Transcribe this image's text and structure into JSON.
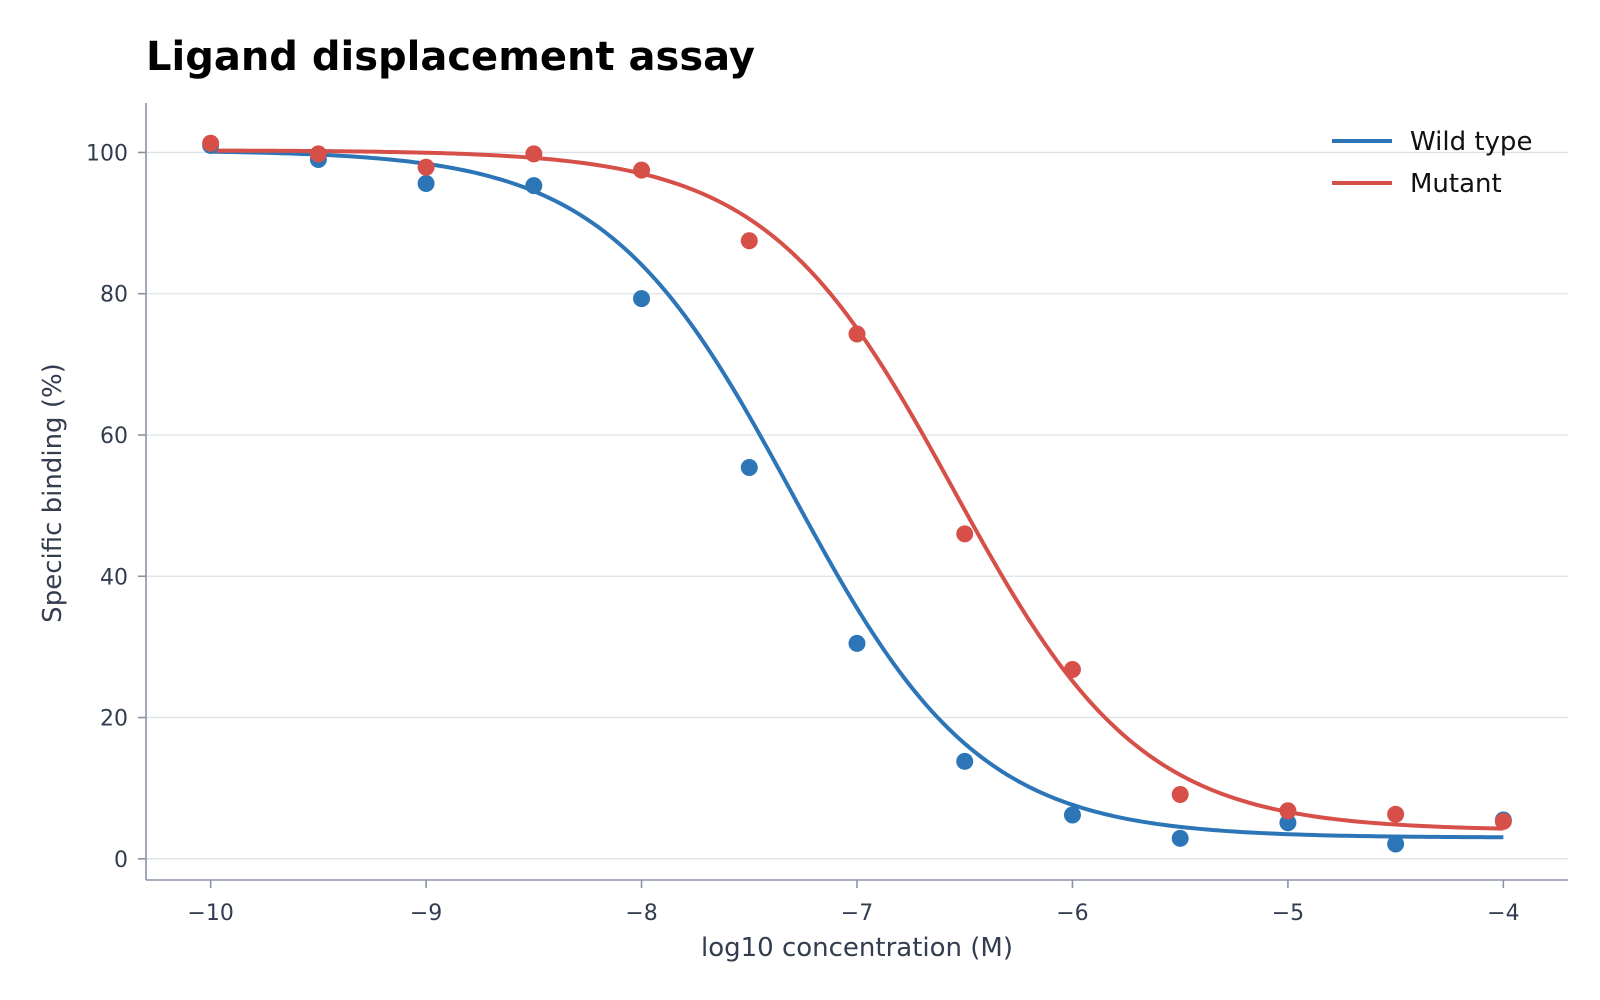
{
  "chart_data": {
    "type": "scatter",
    "title": "Ligand displacement assay",
    "xlabel": "log10 concentration (M)",
    "ylabel": "Specific binding (%)",
    "xlim": [
      -10.3,
      -3.7
    ],
    "ylim": [
      -3,
      107
    ],
    "xticks": [
      -10,
      -9,
      -8,
      -7,
      -6,
      -5,
      -4
    ],
    "xtick_labels": [
      "−10",
      "−9",
      "−8",
      "−7",
      "−6",
      "−5",
      "−4"
    ],
    "yticks": [
      0,
      20,
      40,
      60,
      80,
      100
    ],
    "ytick_labels": [
      "0",
      "20",
      "40",
      "60",
      "80",
      "100"
    ],
    "grid": "horizontal",
    "legend_position": "top-right",
    "x": [
      -10,
      -9.5,
      -9,
      -8.5,
      -8,
      -7.5,
      -7,
      -6.5,
      -6,
      -5.5,
      -5,
      -4.5,
      -4
    ],
    "series": [
      {
        "name": "Wild type",
        "color": "#2c76b8",
        "points": [
          101.0,
          99.0,
          95.6,
          95.3,
          79.3,
          55.4,
          30.5,
          13.8,
          6.2,
          2.9,
          5.1,
          2.1,
          5.5
        ],
        "fit": {
          "model": "sigmoidal dose-response",
          "top": 100.3,
          "bottom": 3.0,
          "log_ic50": -7.3,
          "hill_slope": 1.0
        }
      },
      {
        "name": "Mutant",
        "color": "#d65049",
        "points": [
          101.3,
          99.8,
          97.9,
          99.8,
          97.5,
          87.5,
          74.3,
          46.0,
          26.8,
          9.1,
          6.8,
          6.3,
          5.3
        ],
        "fit": {
          "model": "sigmoidal dose-response",
          "top": 100.3,
          "bottom": 4.0,
          "log_ic50": -6.55,
          "hill_slope": 1.0
        }
      }
    ]
  }
}
